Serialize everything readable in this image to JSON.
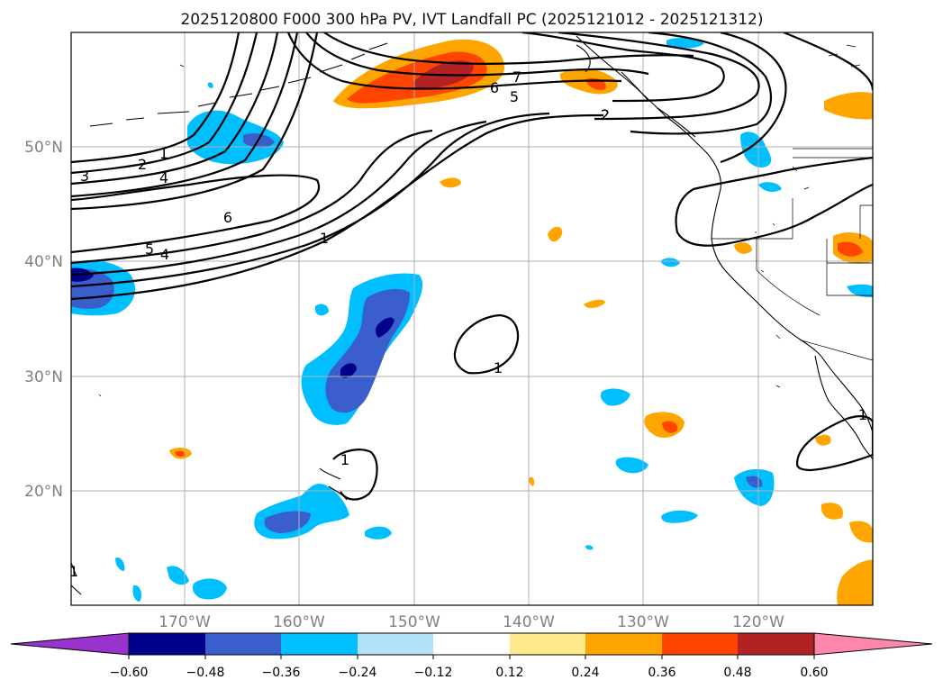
{
  "title": "2025120800 F000 300 hPa PV, IVT Landfall PC (2025121012 - 2025121312)",
  "lat_labels": [
    "50°N",
    "40°N",
    "30°N",
    "20°N"
  ],
  "lon_labels": [
    "170°W",
    "160°W",
    "150°W",
    "140°W",
    "130°W",
    "120°W"
  ],
  "contour_labels": [
    "1",
    "2",
    "3",
    "4",
    "1",
    "2",
    "4",
    "5",
    "6",
    "1",
    "6",
    "5",
    "7",
    "2",
    "1",
    "1",
    "1"
  ],
  "colorbar": {
    "tick_labels": [
      "−0.60",
      "−0.48",
      "−0.36",
      "−0.24",
      "−0.12",
      "0.12",
      "0.24",
      "0.36",
      "0.48",
      "0.60"
    ],
    "colors": [
      "#9a32cd",
      "#00008b",
      "#3a5fcd",
      "#00bfff",
      "#b2e2fa",
      "#ffffff",
      "#fee98d",
      "#ffa500",
      "#ff4500",
      "#b22222",
      "#ff88aa"
    ]
  },
  "map": {
    "lon_range": [
      -180,
      -110
    ],
    "lat_range": [
      10,
      60
    ],
    "field": "PC of IVT landfall regressed on 300 hPa PV (shaded) with PV contours"
  }
}
